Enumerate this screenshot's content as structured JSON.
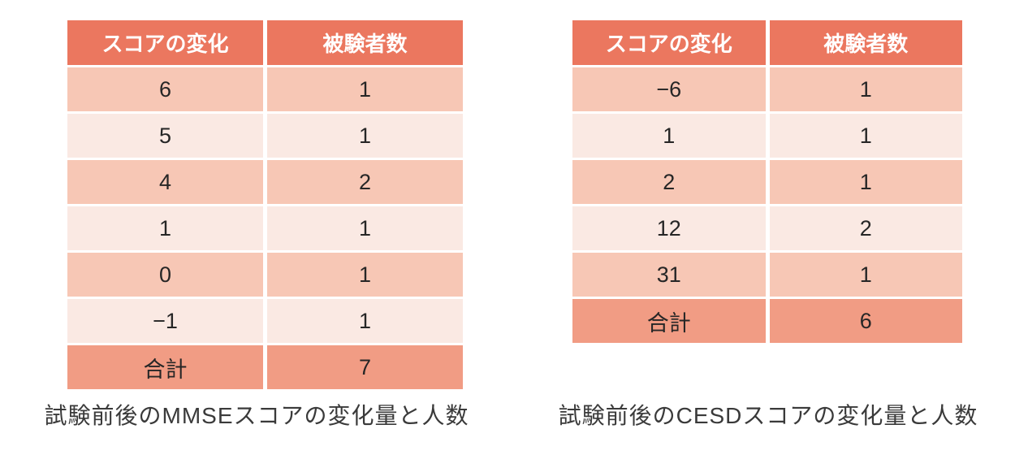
{
  "colors": {
    "header_bg": "#EB775F",
    "header_text": "#FFFFFF",
    "row_dark_bg": "#F7C7B5",
    "row_light_bg": "#FAE9E3",
    "total_row_bg": "#F19C84",
    "cell_text": "#262626",
    "caption_text": "#3A3A3A",
    "page_bg": "#FFFFFF"
  },
  "tables": [
    {
      "name": "MMSE",
      "headers": [
        "スコアの変化",
        "被験者数"
      ],
      "rows": [
        [
          "6",
          "1"
        ],
        [
          "5",
          "1"
        ],
        [
          "4",
          "2"
        ],
        [
          "1",
          "1"
        ],
        [
          "0",
          "1"
        ],
        [
          "−1",
          "1"
        ]
      ],
      "total": [
        "合計",
        "7"
      ],
      "caption": "試験前後のMMSEスコアの変化量と人数"
    },
    {
      "name": "CESD",
      "headers": [
        "スコアの変化",
        "被験者数"
      ],
      "rows": [
        [
          "−6",
          "1"
        ],
        [
          "1",
          "1"
        ],
        [
          "2",
          "1"
        ],
        [
          "12",
          "2"
        ],
        [
          "31",
          "1"
        ]
      ],
      "total": [
        "合計",
        "6"
      ],
      "caption": "試験前後のCESDスコアの変化量と人数"
    }
  ]
}
